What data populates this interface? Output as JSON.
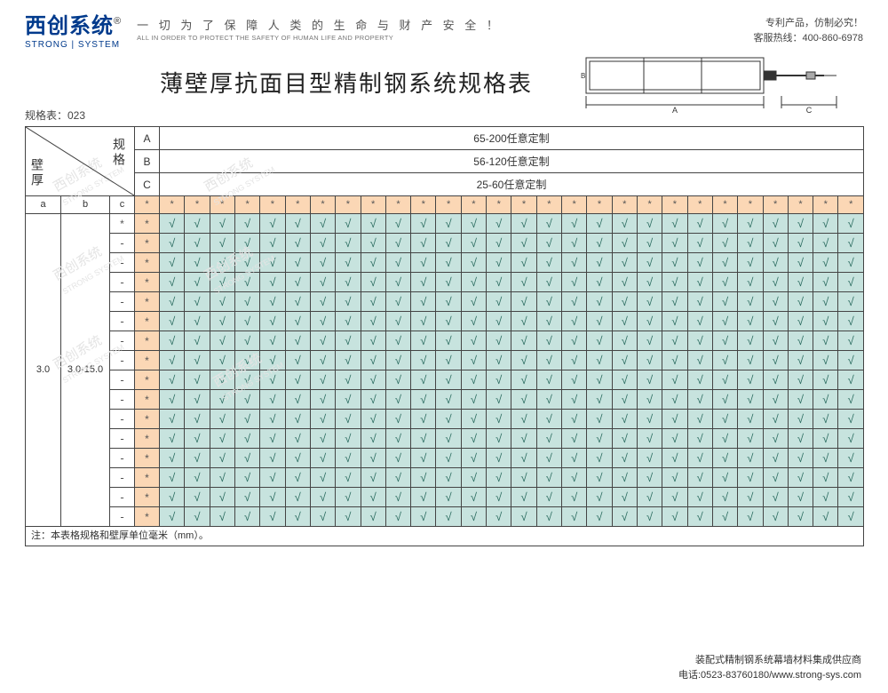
{
  "brand": {
    "name_cn": "西创系统",
    "reg_mark": "®",
    "name_en": "STRONG | SYSTEM",
    "tagline_cn": "一 切 为 了 保 障 人 类 的 生 命 与 财 产 安 全 ！",
    "tagline_en": "ALL IN ORDER TO PROTECT THE SAFETY OF HUMAN LIFE AND PROPERTY"
  },
  "contact": {
    "line1": "专利产品，仿制必究！",
    "line2": "客服热线：400-860-6978"
  },
  "title": "薄壁厚抗面目型精制钢系统规格表",
  "spec_code": "规格表：023",
  "diag_labels": {
    "spec": "规格",
    "thickness": "壁厚"
  },
  "spec_rows": [
    {
      "key": "A",
      "label": "65-200任意定制"
    },
    {
      "key": "B",
      "label": "56-120任意定制"
    },
    {
      "key": "C",
      "label": "25-60任意定制"
    }
  ],
  "abc_headers": [
    "a",
    "b",
    "c"
  ],
  "data": {
    "a_val": "3.0",
    "b_val": "3.0-15.0",
    "num_data_cols": 28,
    "num_body_rows": 16,
    "body_row_first_cell": [
      "*",
      "-",
      "-",
      "-",
      "-",
      "-",
      "-",
      "-",
      "-",
      "-",
      "-",
      "-",
      "-",
      "-",
      "-",
      "-"
    ],
    "body_row_second_cell": [
      "*",
      "*",
      "*",
      "*",
      "*",
      "*",
      "*",
      "*",
      "*",
      "*",
      "*",
      "*",
      "*",
      "*",
      "*",
      "*"
    ]
  },
  "note": "注：本表格规格和壁厚单位毫米（mm）。",
  "footer": {
    "line1": "装配式精制钢系统幕墙材料集成供应商",
    "line2": "电话:0523-83760180/www.strong-sys.com"
  },
  "colors": {
    "peach": "#fbd7b5",
    "teal": "#c7e3de",
    "border": "#444444",
    "check": "#2a6b5f",
    "brand": "#003a8c"
  },
  "symbols": {
    "star": "*",
    "dash": "-",
    "check": "√"
  },
  "drawing": {
    "labels": {
      "A": "A",
      "C": "C",
      "B": "B"
    }
  }
}
